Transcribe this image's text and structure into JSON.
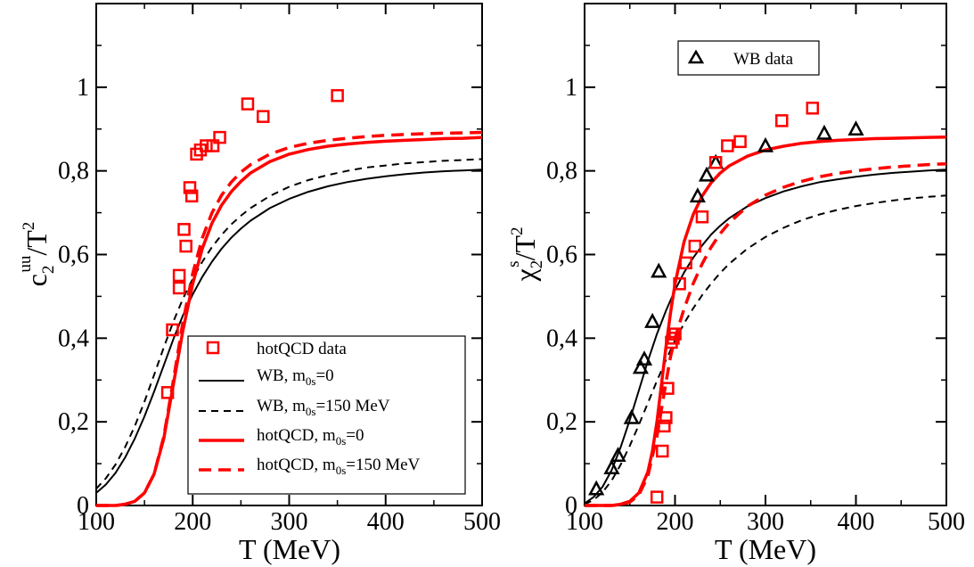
{
  "chart_data": [
    {
      "type": "line",
      "panel": "left",
      "ylabel_parts": {
        "main": "c",
        "sub": "2",
        "sup": "uu",
        "tail": "/T",
        "tail_sup": "2"
      },
      "xlabel": "T (MeV)",
      "xlim": [
        100,
        500
      ],
      "ylim": [
        0,
        1.2
      ],
      "xticks": [
        100,
        200,
        300,
        400,
        500
      ],
      "xtick_labels": [
        "100",
        "200",
        "300",
        "400",
        "500"
      ],
      "yticks": [
        0,
        0.2,
        0.4,
        0.6,
        0.8,
        1
      ],
      "ytick_labels": [
        "0",
        "0,2",
        "0,4",
        "0,6",
        "0,8",
        "1"
      ],
      "legend_position": "bottom-right",
      "legend": [
        {
          "label": "hotQCD data",
          "key": "red-squares"
        },
        {
          "label_main": "WB, m",
          "label_sub": "0s",
          "label_tail": "=0",
          "key": "black-solid"
        },
        {
          "label_main": "WB, m",
          "label_sub": "0s",
          "label_tail": "=150 MeV",
          "key": "black-dashed"
        },
        {
          "label_main": "hotQCD, m",
          "label_sub": "0s",
          "label_tail": "=0",
          "key": "red-solid"
        },
        {
          "label_main": "hotQCD, m",
          "label_sub": "0s",
          "label_tail": "=150 MeV",
          "key": "red-dashed"
        }
      ],
      "series": [
        {
          "name": "WB, m0s=0",
          "style": "black-solid",
          "x": [
            100,
            110,
            120,
            130,
            140,
            150,
            160,
            170,
            180,
            190,
            200,
            210,
            220,
            230,
            240,
            250,
            260,
            280,
            300,
            320,
            340,
            360,
            380,
            400,
            420,
            440,
            460,
            480,
            500
          ],
          "y": [
            0.03,
            0.05,
            0.078,
            0.115,
            0.16,
            0.213,
            0.272,
            0.335,
            0.398,
            0.455,
            0.505,
            0.547,
            0.583,
            0.614,
            0.64,
            0.662,
            0.681,
            0.711,
            0.733,
            0.75,
            0.763,
            0.773,
            0.781,
            0.787,
            0.792,
            0.796,
            0.799,
            0.801,
            0.803
          ]
        },
        {
          "name": "WB, m0s=150 MeV",
          "style": "black-dashed",
          "x": [
            100,
            110,
            120,
            130,
            140,
            150,
            160,
            170,
            180,
            190,
            200,
            210,
            220,
            230,
            240,
            250,
            260,
            280,
            300,
            320,
            340,
            360,
            380,
            400,
            420,
            440,
            460,
            480,
            500
          ],
          "y": [
            0.04,
            0.065,
            0.098,
            0.14,
            0.19,
            0.248,
            0.312,
            0.378,
            0.44,
            0.495,
            0.542,
            0.583,
            0.618,
            0.647,
            0.672,
            0.693,
            0.711,
            0.74,
            0.762,
            0.778,
            0.79,
            0.8,
            0.808,
            0.813,
            0.818,
            0.821,
            0.824,
            0.826,
            0.828
          ]
        },
        {
          "name": "hotQCD, m0s=0",
          "style": "red-solid",
          "x": [
            100,
            120,
            130,
            140,
            150,
            160,
            170,
            180,
            190,
            200,
            210,
            220,
            230,
            240,
            250,
            260,
            280,
            300,
            320,
            340,
            360,
            380,
            400,
            420,
            440,
            460,
            480,
            500
          ],
          "y": [
            0.0,
            0.0,
            0.003,
            0.01,
            0.03,
            0.075,
            0.16,
            0.29,
            0.42,
            0.53,
            0.615,
            0.675,
            0.718,
            0.75,
            0.775,
            0.795,
            0.822,
            0.84,
            0.851,
            0.859,
            0.864,
            0.868,
            0.871,
            0.873,
            0.875,
            0.877,
            0.878,
            0.88
          ]
        },
        {
          "name": "hotQCD, m0s=150 MeV",
          "style": "red-dashed",
          "x": [
            100,
            120,
            130,
            140,
            150,
            160,
            170,
            180,
            190,
            200,
            210,
            220,
            230,
            240,
            250,
            260,
            280,
            300,
            320,
            340,
            360,
            380,
            400,
            420,
            440,
            460,
            480,
            500
          ],
          "y": [
            0.0,
            0.0,
            0.003,
            0.01,
            0.03,
            0.075,
            0.165,
            0.3,
            0.44,
            0.555,
            0.64,
            0.7,
            0.742,
            0.773,
            0.797,
            0.815,
            0.84,
            0.856,
            0.866,
            0.873,
            0.878,
            0.882,
            0.885,
            0.887,
            0.889,
            0.89,
            0.891,
            0.892
          ]
        }
      ],
      "points": [
        {
          "name": "hotQCD data",
          "style": "red-squares",
          "x": [
            174,
            179,
            186,
            186,
            191,
            193,
            197,
            199,
            204,
            208,
            214,
            221,
            228,
            257,
            273,
            350
          ],
          "y": [
            0.27,
            0.42,
            0.52,
            0.55,
            0.66,
            0.62,
            0.76,
            0.74,
            0.84,
            0.85,
            0.86,
            0.86,
            0.88,
            0.96,
            0.93,
            0.98
          ]
        }
      ]
    },
    {
      "type": "line",
      "panel": "right",
      "ylabel_parts": {
        "main": "χ",
        "sub": "2",
        "sup": "s",
        "tail": "/T",
        "tail_sup": "2"
      },
      "xlabel": "T (MeV)",
      "xlim": [
        100,
        500
      ],
      "ylim": [
        0,
        1.2
      ],
      "xticks": [
        100,
        200,
        300,
        400,
        500
      ],
      "xtick_labels": [
        "100",
        "200",
        "300",
        "400",
        "500"
      ],
      "yticks": [
        0,
        0.2,
        0.4,
        0.6,
        0.8,
        1
      ],
      "ytick_labels": [
        "0",
        "0,2",
        "0,4",
        "0,6",
        "0,8",
        "1"
      ],
      "legend_position": "top-center",
      "legend": [
        {
          "label": "WB data",
          "key": "black-triangles"
        }
      ],
      "series": [
        {
          "name": "black solid",
          "style": "black-solid",
          "x": [
            100,
            110,
            120,
            130,
            140,
            150,
            160,
            170,
            180,
            190,
            200,
            210,
            220,
            230,
            240,
            250,
            260,
            280,
            300,
            320,
            340,
            360,
            380,
            400,
            420,
            440,
            460,
            480,
            500
          ],
          "y": [
            0.005,
            0.02,
            0.045,
            0.085,
            0.14,
            0.205,
            0.275,
            0.345,
            0.41,
            0.466,
            0.515,
            0.557,
            0.592,
            0.622,
            0.648,
            0.669,
            0.687,
            0.715,
            0.735,
            0.751,
            0.763,
            0.773,
            0.78,
            0.786,
            0.791,
            0.795,
            0.798,
            0.801,
            0.803
          ]
        },
        {
          "name": "black dashed",
          "style": "black-dashed",
          "x": [
            100,
            110,
            120,
            130,
            140,
            150,
            160,
            170,
            180,
            190,
            200,
            210,
            220,
            230,
            240,
            250,
            260,
            280,
            300,
            320,
            340,
            360,
            380,
            400,
            420,
            440,
            460,
            480,
            500
          ],
          "y": [
            0.003,
            0.013,
            0.032,
            0.06,
            0.098,
            0.143,
            0.193,
            0.245,
            0.298,
            0.348,
            0.394,
            0.435,
            0.471,
            0.503,
            0.531,
            0.556,
            0.578,
            0.614,
            0.642,
            0.664,
            0.682,
            0.696,
            0.707,
            0.716,
            0.723,
            0.729,
            0.734,
            0.738,
            0.741
          ]
        },
        {
          "name": "red solid",
          "style": "red-solid",
          "x": [
            100,
            130,
            140,
            150,
            160,
            170,
            175,
            180,
            185,
            190,
            195,
            200,
            210,
            220,
            230,
            240,
            250,
            260,
            280,
            300,
            320,
            340,
            360,
            380,
            400,
            420,
            440,
            460,
            480,
            500
          ],
          "y": [
            0.0,
            0.0,
            0.003,
            0.01,
            0.03,
            0.08,
            0.13,
            0.2,
            0.29,
            0.38,
            0.46,
            0.53,
            0.63,
            0.695,
            0.74,
            0.772,
            0.795,
            0.812,
            0.835,
            0.85,
            0.859,
            0.866,
            0.87,
            0.873,
            0.875,
            0.877,
            0.878,
            0.879,
            0.88,
            0.881
          ]
        },
        {
          "name": "red dashed",
          "style": "red-dashed",
          "x": [
            100,
            130,
            140,
            150,
            160,
            170,
            180,
            185,
            190,
            195,
            200,
            210,
            220,
            230,
            240,
            250,
            260,
            280,
            300,
            320,
            340,
            360,
            380,
            400,
            420,
            440,
            460,
            480,
            500
          ],
          "y": [
            0.0,
            0.0,
            0.002,
            0.008,
            0.025,
            0.07,
            0.165,
            0.23,
            0.295,
            0.355,
            0.4,
            0.47,
            0.53,
            0.578,
            0.618,
            0.65,
            0.676,
            0.715,
            0.742,
            0.761,
            0.775,
            0.786,
            0.794,
            0.8,
            0.805,
            0.809,
            0.812,
            0.815,
            0.817
          ]
        }
      ],
      "points": [
        {
          "name": "WB data",
          "style": "black-triangles",
          "x": [
            113,
            130,
            137,
            152,
            162,
            166,
            175,
            182,
            225,
            235,
            245,
            300,
            365,
            400
          ],
          "y": [
            0.04,
            0.09,
            0.12,
            0.21,
            0.33,
            0.35,
            0.44,
            0.56,
            0.74,
            0.79,
            0.82,
            0.86,
            0.89,
            0.9
          ]
        },
        {
          "name": "hotQCD data",
          "style": "red-squares",
          "x": [
            180,
            186,
            188,
            190,
            192,
            196,
            198,
            200,
            205,
            212,
            222,
            230,
            245,
            258,
            272,
            318,
            352
          ],
          "y": [
            0.02,
            0.13,
            0.19,
            0.21,
            0.28,
            0.39,
            0.4,
            0.41,
            0.53,
            0.58,
            0.62,
            0.69,
            0.82,
            0.86,
            0.87,
            0.92,
            0.95
          ]
        }
      ]
    }
  ]
}
